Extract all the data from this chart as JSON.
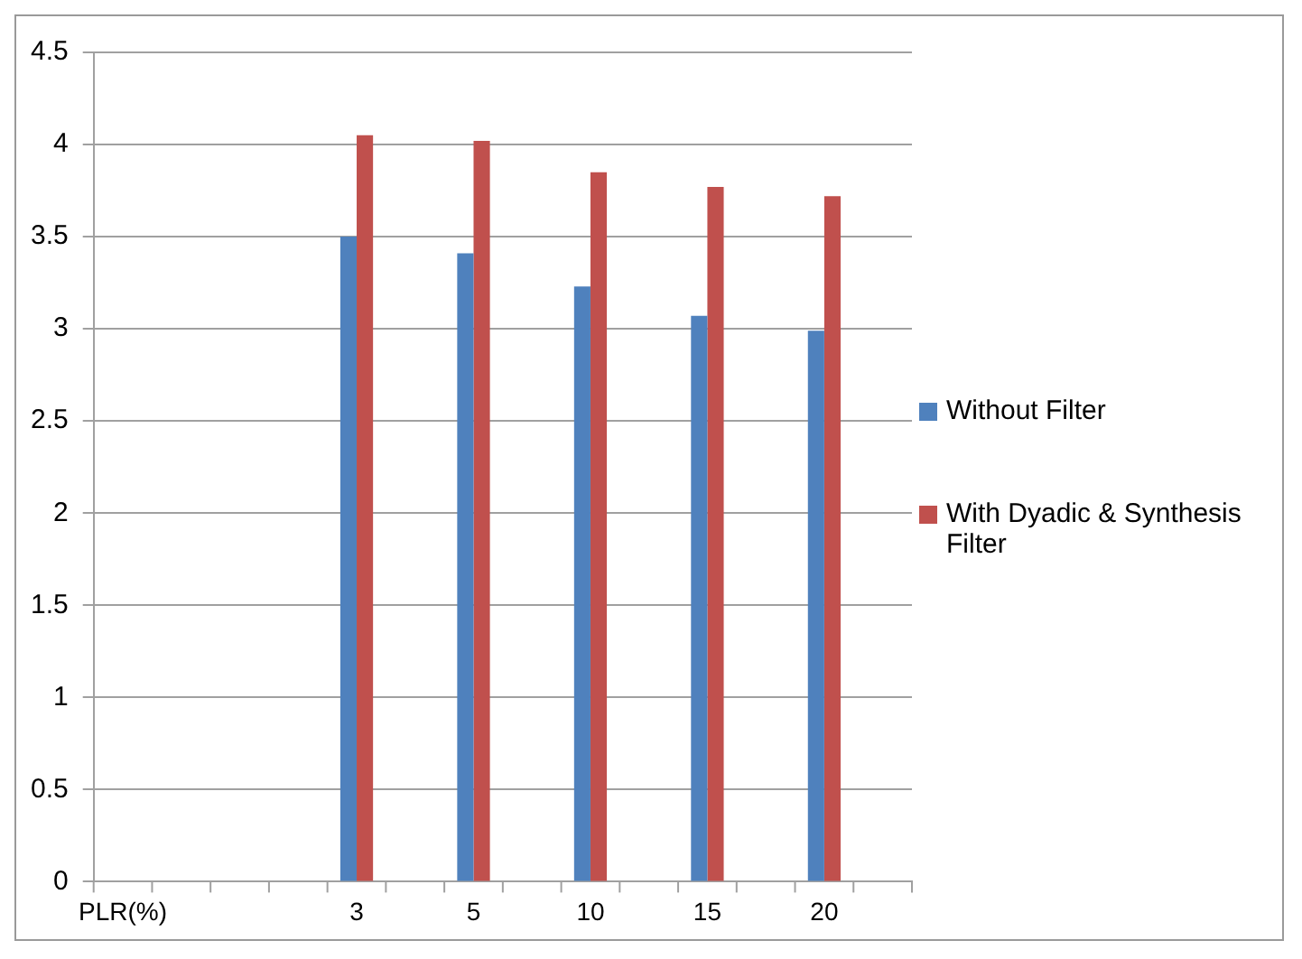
{
  "chart_data": {
    "type": "bar",
    "categories": [
      "PLR(%)",
      null,
      null,
      null,
      "3",
      null,
      "5",
      null,
      "10",
      null,
      "15",
      null,
      "20",
      null
    ],
    "series": [
      {
        "name": "Without Filter",
        "color": "#4f81bd",
        "values": [
          null,
          null,
          null,
          null,
          3.5,
          null,
          3.41,
          null,
          3.23,
          null,
          3.07,
          null,
          2.99,
          null
        ]
      },
      {
        "name": "With Dyadic & Synthesis Filter",
        "color": "#c0504d",
        "values": [
          null,
          null,
          null,
          null,
          4.05,
          null,
          4.02,
          null,
          3.85,
          null,
          3.77,
          null,
          3.72,
          null
        ]
      }
    ],
    "ylim": [
      0,
      4.5
    ],
    "yticks": [
      0,
      0.5,
      1,
      1.5,
      2,
      2.5,
      3,
      3.5,
      4,
      4.5
    ],
    "grid": "y",
    "legend": "right"
  }
}
